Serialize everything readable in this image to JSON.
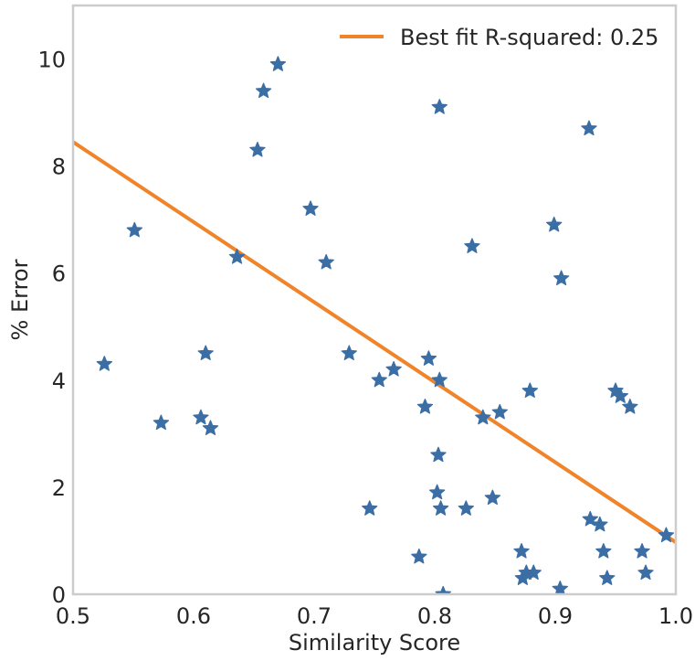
{
  "chart_data": {
    "type": "scatter",
    "xlabel": "Similarity Score",
    "ylabel": "% Error",
    "xlim": [
      0.5,
      1.0
    ],
    "ylim": [
      0,
      11
    ],
    "xticks": [
      "0.5",
      "0.6",
      "0.7",
      "0.8",
      "0.9",
      "1.0"
    ],
    "yticks": [
      "0",
      "2",
      "4",
      "6",
      "8",
      "10"
    ],
    "grid": false,
    "legend_position": "top-right",
    "marker": "star",
    "colors": {
      "points": "#3a6ea5",
      "fit_line": "#f0842a",
      "frame": "#cccccc",
      "text": "#262626"
    },
    "series": [
      {
        "points": [
          [
            0.526,
            4.3
          ],
          [
            0.551,
            6.8
          ],
          [
            0.573,
            3.2
          ],
          [
            0.606,
            3.3
          ],
          [
            0.61,
            4.5
          ],
          [
            0.614,
            3.1
          ],
          [
            0.636,
            6.3
          ],
          [
            0.653,
            8.3
          ],
          [
            0.658,
            9.4
          ],
          [
            0.67,
            9.9
          ],
          [
            0.697,
            7.2
          ],
          [
            0.71,
            6.2
          ],
          [
            0.729,
            4.5
          ],
          [
            0.746,
            1.6
          ],
          [
            0.754,
            4.0
          ],
          [
            0.766,
            4.2
          ],
          [
            0.787,
            0.7
          ],
          [
            0.792,
            3.5
          ],
          [
            0.795,
            4.4
          ],
          [
            0.802,
            1.9
          ],
          [
            0.803,
            2.6
          ],
          [
            0.804,
            9.1
          ],
          [
            0.804,
            4.0
          ],
          [
            0.805,
            1.6
          ],
          [
            0.807,
            0.0
          ],
          [
            0.826,
            1.6
          ],
          [
            0.831,
            6.5
          ],
          [
            0.84,
            3.3
          ],
          [
            0.848,
            1.8
          ],
          [
            0.854,
            3.4
          ],
          [
            0.872,
            0.8
          ],
          [
            0.873,
            0.3
          ],
          [
            0.876,
            0.4
          ],
          [
            0.879,
            3.8
          ],
          [
            0.882,
            0.4
          ],
          [
            0.899,
            6.9
          ],
          [
            0.904,
            0.1
          ],
          [
            0.905,
            5.9
          ],
          [
            0.928,
            8.7
          ],
          [
            0.929,
            1.4
          ],
          [
            0.937,
            1.3
          ],
          [
            0.94,
            0.8
          ],
          [
            0.943,
            0.3
          ],
          [
            0.95,
            3.8
          ],
          [
            0.954,
            3.7
          ],
          [
            0.962,
            3.5
          ],
          [
            0.972,
            0.8
          ],
          [
            0.975,
            0.4
          ],
          [
            0.992,
            1.1
          ]
        ]
      },
      {
        "name": "Best fit R-squared: 0.25",
        "type": "line",
        "points": [
          [
            0.5,
            8.45
          ],
          [
            1.0,
            0.97
          ]
        ]
      }
    ]
  }
}
